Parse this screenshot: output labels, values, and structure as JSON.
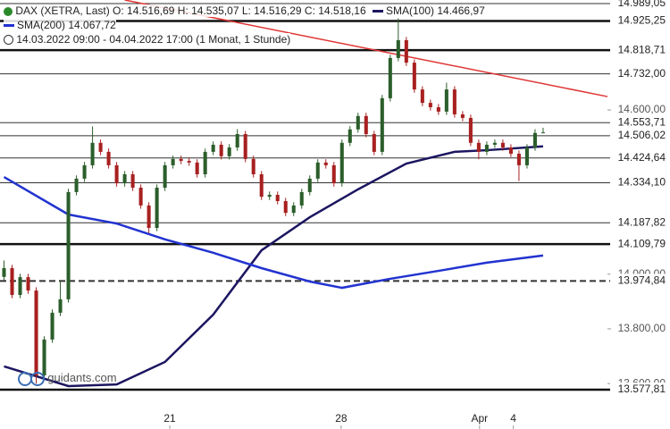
{
  "header": {
    "instrument": "DAX (XETRA, Last)",
    "open": "O: 14.516,69",
    "high": "H: 14.535,07",
    "low": "L: 14.516,29",
    "close": "C: 14.518,16",
    "range": "14.03.2022 09:00 - 04.04.2022 17:00",
    "period": "(1 Monat, 1 Stunde)",
    "watermark": "guidants.com"
  },
  "chart_data": {
    "type": "candlestick",
    "up_color": "#2b5e2b",
    "down_color": "#a82020",
    "xlim": [
      -0.5,
      75
    ],
    "ylim": [
      13434,
      15002
    ],
    "xticks": [
      {
        "value": 20.6,
        "label": "21"
      },
      {
        "value": 41.9,
        "label": "28"
      },
      {
        "value": 59.1,
        "label": "Apr"
      },
      {
        "value": 63.3,
        "label": "4"
      }
    ],
    "yticks": [
      {
        "value": 14600,
        "label": "14.600,00"
      },
      {
        "value": 14000,
        "label": "14.000,00"
      },
      {
        "value": 13800,
        "label": "13.800,00"
      },
      {
        "value": 13600,
        "label": "13.600,00"
      }
    ],
    "open": [
      13990,
      14022,
      13924,
      13989,
      13940,
      13630,
      13761,
      13859,
      13908,
      14300,
      14349,
      14398,
      14480,
      14447,
      14398,
      14332,
      14365,
      14316,
      14251,
      14169,
      14316,
      14398,
      14421,
      14414,
      14408,
      14365,
      14447,
      14473,
      14431,
      14463,
      14512,
      14421,
      14365,
      14283,
      14290,
      14267,
      14224,
      14251,
      14300,
      14349,
      14408,
      14398,
      14332,
      14480,
      14529,
      14578,
      14512,
      14447,
      14643,
      14790,
      14855,
      14773,
      14675,
      14626,
      14610,
      14594,
      14675,
      14584,
      14571,
      14480,
      14447,
      14473,
      14480,
      14463,
      14440,
      14398,
      14463,
      14516.69
    ],
    "high": [
      14050,
      14034,
      14001,
      14001,
      13952,
      13773,
      13871,
      13974,
      14312,
      14361,
      14410,
      14540,
      14492,
      14459,
      14410,
      14377,
      14377,
      14328,
      14263,
      14328,
      14410,
      14433,
      14433,
      14426,
      14420,
      14459,
      14485,
      14485,
      14475,
      14530,
      14524,
      14433,
      14377,
      14302,
      14302,
      14279,
      14263,
      14312,
      14361,
      14420,
      14420,
      14410,
      14492,
      14541,
      14590,
      14590,
      14524,
      14655,
      14802,
      14935,
      14867,
      14785,
      14687,
      14638,
      14622,
      14700,
      14687,
      14596,
      14583,
      14492,
      14485,
      14492,
      14492,
      14475,
      14452,
      14475,
      14530,
      14535.07
    ],
    "low": [
      13978,
      13912,
      13912,
      13928,
      13600,
      13618,
      13749,
      13847,
      13896,
      14288,
      14337,
      14386,
      14435,
      14386,
      14320,
      14320,
      14304,
      14239,
      14150,
      14157,
      14304,
      14386,
      14402,
      14396,
      14353,
      14353,
      14435,
      14419,
      14419,
      14451,
      14409,
      14353,
      14271,
      14271,
      14255,
      14212,
      14212,
      14239,
      14288,
      14337,
      14386,
      14320,
      14320,
      14468,
      14517,
      14500,
      14435,
      14435,
      14631,
      14778,
      14761,
      14663,
      14614,
      14598,
      14582,
      14582,
      14572,
      14559,
      14468,
      14420,
      14435,
      14461,
      14451,
      14428,
      14340,
      14386,
      14451,
      14516.29
    ],
    "close": [
      14022,
      13924,
      13989,
      13940,
      13630,
      13761,
      13859,
      13908,
      14300,
      14349,
      14398,
      14480,
      14447,
      14398,
      14332,
      14365,
      14316,
      14251,
      14169,
      14316,
      14398,
      14421,
      14414,
      14408,
      14365,
      14447,
      14473,
      14431,
      14463,
      14512,
      14421,
      14365,
      14283,
      14290,
      14267,
      14224,
      14251,
      14300,
      14349,
      14408,
      14398,
      14332,
      14480,
      14529,
      14578,
      14512,
      14447,
      14643,
      14790,
      14855,
      14773,
      14675,
      14626,
      14610,
      14594,
      14675,
      14584,
      14571,
      14480,
      14447,
      14473,
      14480,
      14463,
      14440,
      14398,
      14463,
      14516,
      14518.16
    ],
    "series": [
      {
        "name": "SMA(100)",
        "last_label": "14.466,97",
        "color": "#1c1660",
        "x": [
          0,
          8,
          14,
          20,
          26,
          32,
          38,
          44,
          50,
          56,
          60,
          67
        ],
        "values": [
          13663,
          13591,
          13597,
          13679,
          13852,
          14087,
          14208,
          14310,
          14404,
          14447,
          14453,
          14467
        ]
      },
      {
        "name": "SMA(200)",
        "last_label": "14.067,72",
        "color": "#2233d0",
        "x": [
          0,
          8,
          14,
          20,
          26,
          32,
          38,
          42,
          48,
          54,
          60,
          67
        ],
        "values": [
          14355,
          14218,
          14185,
          14127,
          14078,
          14022,
          13973,
          13950,
          13983,
          14012,
          14042,
          14068
        ]
      }
    ],
    "trendline": {
      "color": "#e03434",
      "x": [
        15,
        75
      ],
      "values": [
        15002,
        14649
      ]
    },
    "levels": [
      {
        "value": 14989.05,
        "label": "14.989,05",
        "style": "thin"
      },
      {
        "value": 14925.25,
        "label": "14.925,25",
        "style": "bold"
      },
      {
        "value": 14818.71,
        "label": "14.818,71",
        "style": "bold"
      },
      {
        "value": 14732.0,
        "label": "14.732,00",
        "style": "thin"
      },
      {
        "value": 14553.71,
        "label": "14.553,71",
        "style": "thin"
      },
      {
        "value": 14506.02,
        "label": "14.506,02",
        "style": "thin"
      },
      {
        "value": 14424.64,
        "label": "14.424,64",
        "style": "thin"
      },
      {
        "value": 14334.1,
        "label": "14.334,10",
        "style": "thin"
      },
      {
        "value": 14187.82,
        "label": "14.187,82",
        "style": "thin"
      },
      {
        "value": 14109.79,
        "label": "14.109,79",
        "style": "bold"
      },
      {
        "value": 13974.84,
        "label": "13.974,84",
        "style": "dashed"
      },
      {
        "value": 13577.81,
        "label": "13.577,81",
        "style": "bold"
      }
    ]
  }
}
